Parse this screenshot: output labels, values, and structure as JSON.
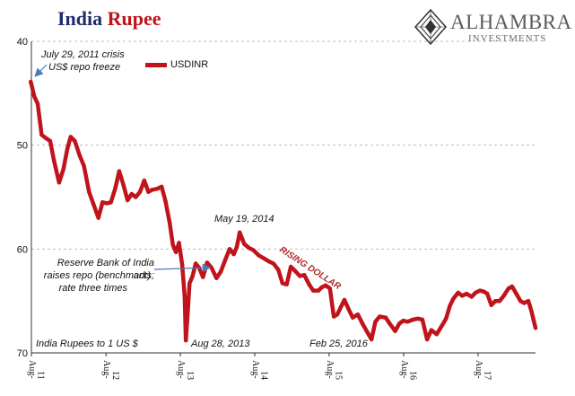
{
  "title_part1": "India",
  "title_part2": "Rupee",
  "logo": {
    "name": "ALHAMBRA",
    "sub": "INVESTMENTS"
  },
  "legend_label": "USDINR",
  "annotations": {
    "crisis_line1": "July 29, 2011 crisis",
    "crisis_line2": "US$ repo freeze",
    "peak": "May 19, 2014",
    "rising": "RISING DOLLAR",
    "rbi_line1": "Reserve Bank of India acts;",
    "rbi_line2": "raises repo (benchmark)",
    "rbi_line3": "rate three times",
    "aug2013": "Aug 28, 2013",
    "feb2016": "Feb 25, 2016",
    "unit": "India Rupees to 1 US $"
  },
  "colors": {
    "series": "#c0141c",
    "title_blue": "#1f2d6b",
    "title_red": "#c0141c",
    "arrow": "#4a7bb7",
    "grid": "#bfbfbf"
  },
  "chart_data": {
    "type": "line",
    "y_inverted": true,
    "ylim": [
      40,
      70
    ],
    "yticks": [
      40,
      50,
      60,
      70
    ],
    "xlim": [
      "2011-08-01",
      "2018-05-10"
    ],
    "xticks": [
      {
        "date": "2011-08-01",
        "label": "Aug-11"
      },
      {
        "date": "2012-08-01",
        "label": "Aug-12"
      },
      {
        "date": "2013-08-01",
        "label": "Aug-13"
      },
      {
        "date": "2014-08-01",
        "label": "Aug-14"
      },
      {
        "date": "2015-08-01",
        "label": "Aug-15"
      },
      {
        "date": "2016-08-01",
        "label": "Aug-16"
      },
      {
        "date": "2017-08-01",
        "label": "Aug-17"
      }
    ],
    "grid": "horizontal-dashed",
    "series": [
      {
        "name": "USDINR",
        "points": [
          [
            "2011-07-29",
            43.9
          ],
          [
            "2011-08-15",
            45.3
          ],
          [
            "2011-09-01",
            46.0
          ],
          [
            "2011-09-20",
            49.0
          ],
          [
            "2011-10-10",
            49.3
          ],
          [
            "2011-11-01",
            49.6
          ],
          [
            "2011-11-20",
            51.5
          ],
          [
            "2011-12-15",
            53.6
          ],
          [
            "2012-01-05",
            52.3
          ],
          [
            "2012-01-25",
            50.3
          ],
          [
            "2012-02-10",
            49.2
          ],
          [
            "2012-03-01",
            49.6
          ],
          [
            "2012-03-25",
            51.0
          ],
          [
            "2012-04-15",
            52.0
          ],
          [
            "2012-05-10",
            54.5
          ],
          [
            "2012-06-01",
            55.7
          ],
          [
            "2012-06-25",
            57.0
          ],
          [
            "2012-07-15",
            55.5
          ],
          [
            "2012-08-05",
            55.6
          ],
          [
            "2012-08-25",
            55.5
          ],
          [
            "2012-09-15",
            54.2
          ],
          [
            "2012-10-05",
            52.5
          ],
          [
            "2012-10-25",
            53.8
          ],
          [
            "2012-11-15",
            55.3
          ],
          [
            "2012-12-05",
            54.7
          ],
          [
            "2012-12-25",
            55.0
          ],
          [
            "2013-01-15",
            54.5
          ],
          [
            "2013-02-05",
            53.4
          ],
          [
            "2013-02-25",
            54.5
          ],
          [
            "2013-03-15",
            54.3
          ],
          [
            "2013-04-10",
            54.2
          ],
          [
            "2013-05-01",
            54.0
          ],
          [
            "2013-05-20",
            55.4
          ],
          [
            "2013-06-10",
            57.5
          ],
          [
            "2013-06-25",
            59.6
          ],
          [
            "2013-07-10",
            60.3
          ],
          [
            "2013-07-25",
            59.4
          ],
          [
            "2013-08-10",
            61.5
          ],
          [
            "2013-08-22",
            64.5
          ],
          [
            "2013-08-28",
            68.8
          ],
          [
            "2013-09-05",
            66.5
          ],
          [
            "2013-09-15",
            63.3
          ],
          [
            "2013-09-30",
            62.6
          ],
          [
            "2013-10-15",
            61.4
          ],
          [
            "2013-11-01",
            61.8
          ],
          [
            "2013-11-20",
            62.7
          ],
          [
            "2013-12-10",
            61.3
          ],
          [
            "2014-01-01",
            61.8
          ],
          [
            "2014-01-25",
            62.8
          ],
          [
            "2014-02-15",
            62.2
          ],
          [
            "2014-03-10",
            61.0
          ],
          [
            "2014-03-31",
            60.0
          ],
          [
            "2014-04-20",
            60.5
          ],
          [
            "2014-05-05",
            59.8
          ],
          [
            "2014-05-19",
            58.4
          ],
          [
            "2014-06-10",
            59.5
          ],
          [
            "2014-07-05",
            59.9
          ],
          [
            "2014-07-25",
            60.1
          ],
          [
            "2014-08-20",
            60.6
          ],
          [
            "2014-09-15",
            60.9
          ],
          [
            "2014-10-10",
            61.2
          ],
          [
            "2014-11-01",
            61.4
          ],
          [
            "2014-11-25",
            62.0
          ],
          [
            "2014-12-15",
            63.3
          ],
          [
            "2015-01-05",
            63.4
          ],
          [
            "2015-01-25",
            61.7
          ],
          [
            "2015-02-15",
            62.1
          ],
          [
            "2015-03-10",
            62.6
          ],
          [
            "2015-04-01",
            62.5
          ],
          [
            "2015-04-25",
            63.4
          ],
          [
            "2015-05-15",
            64.0
          ],
          [
            "2015-06-10",
            64.0
          ],
          [
            "2015-06-25",
            63.7
          ],
          [
            "2015-07-15",
            63.5
          ],
          [
            "2015-08-05",
            63.8
          ],
          [
            "2015-08-24",
            66.5
          ],
          [
            "2015-09-10",
            66.3
          ],
          [
            "2015-09-30",
            65.5
          ],
          [
            "2015-10-15",
            64.9
          ],
          [
            "2015-11-05",
            65.8
          ],
          [
            "2015-11-25",
            66.6
          ],
          [
            "2015-12-20",
            66.3
          ],
          [
            "2016-01-15",
            67.3
          ],
          [
            "2016-02-25",
            68.7
          ],
          [
            "2016-03-15",
            67.0
          ],
          [
            "2016-04-05",
            66.5
          ],
          [
            "2016-05-05",
            66.6
          ],
          [
            "2016-05-25",
            67.2
          ],
          [
            "2016-06-20",
            67.9
          ],
          [
            "2016-07-10",
            67.2
          ],
          [
            "2016-07-30",
            66.9
          ],
          [
            "2016-08-20",
            67.0
          ],
          [
            "2016-09-15",
            66.8
          ],
          [
            "2016-10-10",
            66.7
          ],
          [
            "2016-11-01",
            66.8
          ],
          [
            "2016-11-24",
            68.7
          ],
          [
            "2016-12-15",
            67.8
          ],
          [
            "2017-01-10",
            68.2
          ],
          [
            "2017-02-01",
            67.5
          ],
          [
            "2017-02-25",
            66.7
          ],
          [
            "2017-03-15",
            65.5
          ],
          [
            "2017-04-01",
            64.8
          ],
          [
            "2017-04-25",
            64.2
          ],
          [
            "2017-05-15",
            64.5
          ],
          [
            "2017-06-05",
            64.3
          ],
          [
            "2017-06-30",
            64.6
          ],
          [
            "2017-07-20",
            64.2
          ],
          [
            "2017-08-10",
            64.0
          ],
          [
            "2017-08-30",
            64.1
          ],
          [
            "2017-09-15",
            64.3
          ],
          [
            "2017-10-05",
            65.4
          ],
          [
            "2017-10-25",
            65.0
          ],
          [
            "2017-11-15",
            65.0
          ],
          [
            "2017-12-05",
            64.5
          ],
          [
            "2017-12-28",
            63.8
          ],
          [
            "2018-01-15",
            63.6
          ],
          [
            "2018-02-05",
            64.3
          ],
          [
            "2018-02-25",
            65.0
          ],
          [
            "2018-03-15",
            65.2
          ],
          [
            "2018-04-05",
            65.0
          ],
          [
            "2018-04-20",
            66.0
          ],
          [
            "2018-05-01",
            66.9
          ],
          [
            "2018-05-10",
            67.6
          ]
        ]
      }
    ]
  }
}
